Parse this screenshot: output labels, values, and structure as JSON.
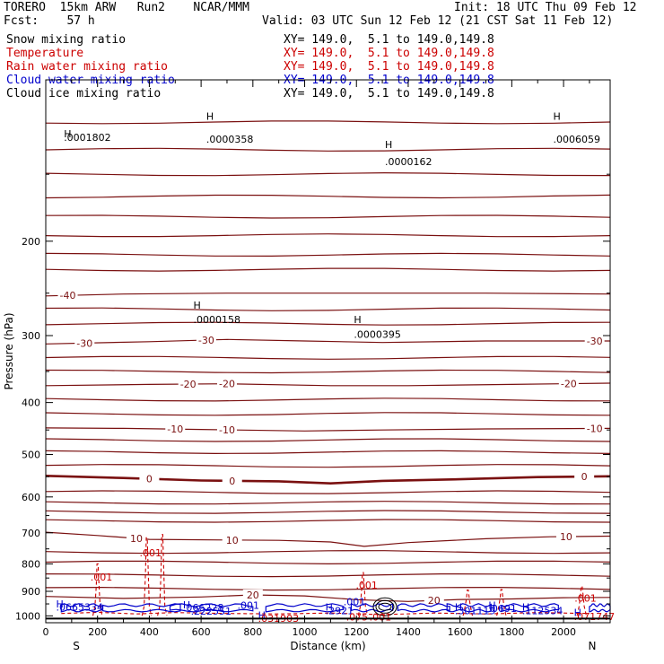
{
  "header": {
    "title_left": "TORERO  15km ARW   Run2    NCAR/MMM",
    "init": "Init: 18 UTC Thu 09 Feb 12",
    "fcst": "Fcst:    57 h",
    "valid": "Valid: 03 UTC Sun 12 Feb 12 (21 CST Sat 11 Feb 12)"
  },
  "fields": [
    {
      "name": "Snow mixing ratio",
      "xy": "XY= 149.0,  5.1 to 149.0,149.8",
      "color": "#000000"
    },
    {
      "name": "Temperature",
      "xy": "XY= 149.0,  5.1 to 149.0,149.8",
      "color": "#cc0000"
    },
    {
      "name": "Rain water mixing ratio",
      "xy": "XY= 149.0,  5.1 to 149.0,149.8",
      "color": "#cc0000"
    },
    {
      "name": "Cloud water mixing ratio",
      "xy": "XY= 149.0,  5.1 to 149.0,149.8",
      "color": "#0000cc"
    },
    {
      "name": "Cloud ice mixing ratio",
      "xy": "XY= 149.0,  5.1 to 149.0,149.8",
      "color": "#000000"
    }
  ],
  "colors": {
    "temperature": "#7a1010",
    "rain": "#cc0000",
    "cloud_water": "#0000cc",
    "axis": "#000000"
  },
  "chart_data": {
    "type": "line",
    "xlabel": "Distance (km)",
    "ylabel": "Pressure (hPa)",
    "xlim": [
      0,
      2180
    ],
    "ylim": [
      1030,
      100
    ],
    "y_scale": "log",
    "x_ticks": [
      0,
      200,
      400,
      600,
      800,
      1000,
      1200,
      1400,
      1600,
      1800,
      2000
    ],
    "y_ticks": [
      200,
      300,
      400,
      500,
      600,
      700,
      800,
      900,
      1000
    ],
    "endpoint_labels": {
      "left": "S",
      "right": "N"
    },
    "temperature_contours": [
      {
        "label": "-40",
        "label_x": 85,
        "points": [
          [
            0,
            253
          ],
          [
            300,
            251
          ],
          [
            700,
            250
          ],
          [
            1200,
            250
          ],
          [
            1700,
            250
          ],
          [
            2180,
            251
          ]
        ]
      },
      {
        "label": "-30",
        "label_x": 150,
        "points": [
          [
            0,
            311
          ],
          [
            400,
            308
          ],
          [
            700,
            305
          ],
          [
            1000,
            307
          ],
          [
            1300,
            309
          ],
          [
            1700,
            307
          ],
          [
            2180,
            307
          ]
        ],
        "labels_at": [
          150,
          620,
          2120
        ]
      },
      {
        "label": "-20",
        "label_x": 550,
        "points": [
          [
            0,
            372
          ],
          [
            400,
            370
          ],
          [
            700,
            369
          ],
          [
            1100,
            372
          ],
          [
            1400,
            372
          ],
          [
            1800,
            370
          ],
          [
            2180,
            368
          ]
        ],
        "labels_at": [
          550,
          700,
          2020
        ]
      },
      {
        "label": "-10",
        "label_x": 500,
        "points": [
          [
            0,
            446
          ],
          [
            300,
            447
          ],
          [
            600,
            449
          ],
          [
            1000,
            452
          ],
          [
            1300,
            450
          ],
          [
            1700,
            448
          ],
          [
            2180,
            447
          ]
        ],
        "labels_at": [
          500,
          700,
          2120
        ]
      },
      {
        "label": "0",
        "label_x": 400,
        "points": [
          [
            0,
            548
          ],
          [
            300,
            553
          ],
          [
            600,
            559
          ],
          [
            900,
            561
          ],
          [
            1100,
            566
          ],
          [
            1300,
            560
          ],
          [
            1600,
            556
          ],
          [
            1900,
            551
          ],
          [
            2180,
            549
          ]
        ],
        "labels_at": [
          400,
          720,
          2080
        ]
      },
      {
        "label": "10",
        "label_x": 350,
        "points": [
          [
            0,
            698
          ],
          [
            200,
            708
          ],
          [
            400,
            720
          ],
          [
            700,
            722
          ],
          [
            900,
            723
          ],
          [
            1100,
            728
          ],
          [
            1230,
            742
          ],
          [
            1400,
            730
          ],
          [
            1700,
            718
          ],
          [
            1950,
            712
          ],
          [
            2180,
            710
          ]
        ],
        "labels_at": [
          350,
          720,
          2010
        ]
      },
      {
        "label": "20",
        "label_x": 800,
        "points": [
          [
            0,
            920
          ],
          [
            300,
            928
          ],
          [
            600,
            922
          ],
          [
            800,
            914
          ],
          [
            1000,
            918
          ],
          [
            1200,
            933
          ],
          [
            1400,
            940
          ],
          [
            1600,
            932
          ],
          [
            1800,
            930
          ],
          [
            2000,
            925
          ],
          [
            2180,
            924
          ]
        ],
        "labels_at": [
          800,
          1500
        ]
      }
    ],
    "temperature_levels_plain": [
      120,
      135,
      150,
      165,
      180,
      195,
      212,
      226,
      268,
      285,
      330,
      350,
      395,
      420,
      470,
      495,
      525,
      588,
      615,
      640,
      665,
      760,
      795,
      840,
      890
    ],
    "rain_water_peaks": [
      {
        "x": 200,
        "top_p": 800,
        "label": ".001"
      },
      {
        "x": 390,
        "top_p": 715,
        "label": ".001"
      },
      {
        "x": 450,
        "top_p": 705
      },
      {
        "x": 1225,
        "top_p": 830,
        "label": ".001"
      },
      {
        "x": 1630,
        "top_p": 895
      },
      {
        "x": 1760,
        "top_p": 893
      },
      {
        "x": 2070,
        "top_p": 880,
        "label": ".001"
      }
    ],
    "maxima_labels": [
      {
        "text": "H",
        "x": 70,
        "p": 126
      },
      {
        "text": ".0001802",
        "x": 70,
        "p": 128
      },
      {
        "text": "H",
        "x": 620,
        "p": 117
      },
      {
        "text": ".0000358",
        "x": 620,
        "p": 129
      },
      {
        "text": "H",
        "x": 1310,
        "p": 132
      },
      {
        "text": ".0000162",
        "x": 1310,
        "p": 142
      },
      {
        "text": "H",
        "x": 1960,
        "p": 117
      },
      {
        "text": ".0006059",
        "x": 1960,
        "p": 129
      },
      {
        "text": "H",
        "x": 570,
        "p": 263
      },
      {
        "text": ".0000158",
        "x": 570,
        "p": 280
      },
      {
        "text": "H",
        "x": 1190,
        "p": 280
      },
      {
        "text": ".0000395",
        "x": 1190,
        "p": 298
      },
      {
        "text": "H",
        "x": 40,
        "p": 950
      },
      {
        "text": ".0665334",
        "x": 40,
        "p": 963
      },
      {
        "text": "H",
        "x": 530,
        "p": 953
      },
      {
        "text": ".066228",
        "x": 530,
        "p": 965
      },
      {
        "text": ".222551",
        "x": 560,
        "p": 980
      },
      {
        "text": ".001",
        "x": 740,
        "p": 956
      },
      {
        "text": "H",
        "x": 820,
        "p": 997
      },
      {
        "text": ".031903",
        "x": 820,
        "p": 1010
      },
      {
        "text": "H",
        "x": 1080,
        "p": 962
      },
      {
        "text": ".2921",
        "x": 1080,
        "p": 978
      },
      {
        "text": ".075",
        "x": 1160,
        "p": 1005
      },
      {
        "text": ".001",
        "x": 1250,
        "p": 1005
      },
      {
        "text": ".001",
        "x": 1150,
        "p": 941
      },
      {
        "text": "H",
        "x": 1580,
        "p": 962
      },
      {
        "text": ".301119",
        "x": 1580,
        "p": 978
      },
      {
        "text": "H",
        "x": 1710,
        "p": 956
      },
      {
        "text": ".0691",
        "x": 1710,
        "p": 968
      },
      {
        "text": "H",
        "x": 1840,
        "p": 962
      },
      {
        "text": ".112534",
        "x": 1840,
        "p": 978
      },
      {
        "text": "H",
        "x": 2040,
        "p": 986
      },
      {
        "text": ".071747",
        "x": 2040,
        "p": 1002
      }
    ]
  }
}
